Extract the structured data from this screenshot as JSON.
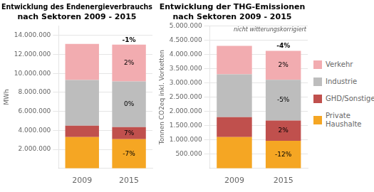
{
  "chart_data": [
    {
      "type": "bar",
      "stacked": true,
      "grid": true,
      "title": "Entwicklung des Endenergieverbrauchs\nnach Sektoren 2009 - 2015",
      "y_label": "MWh",
      "categories": [
        "2009",
        "2015"
      ],
      "series": [
        {
          "name": "Private Haushalte",
          "color": "#F5A623",
          "values": [
            3300000,
            3070000
          ]
        },
        {
          "name": "GHD/Sonstiges",
          "color": "#C0504D",
          "values": [
            1200000,
            1284000
          ]
        },
        {
          "name": "Industrie",
          "color": "#BDBDBD",
          "values": [
            4800000,
            4800000
          ]
        },
        {
          "name": "Verkehr",
          "color": "#F2ACB0",
          "values": [
            3800000,
            3876000
          ]
        }
      ],
      "ylim": [
        0,
        15000000
      ],
      "yticks": [
        {
          "value": 2000000,
          "label": "2.000.000"
        },
        {
          "value": 4000000,
          "label": "4.000.000"
        },
        {
          "value": 6000000,
          "label": "6.000.000"
        },
        {
          "value": 8000000,
          "label": "8.000.000"
        },
        {
          "value": 10000000,
          "label": "10.000.000"
        },
        {
          "value": 12000000,
          "label": "12.000.000"
        },
        {
          "value": 14000000,
          "label": "14.000.000"
        }
      ],
      "annotations": [
        {
          "x": "2015",
          "series": "Private Haushalte",
          "text": "-7%"
        },
        {
          "x": "2015",
          "series": "GHD/Sonstiges",
          "text": "7%"
        },
        {
          "x": "2015",
          "series": "Industrie",
          "text": "0%"
        },
        {
          "x": "2015",
          "series": "Verkehr",
          "text": "2%"
        },
        {
          "x": "2015",
          "text": "-1%"
        }
      ]
    },
    {
      "type": "bar",
      "stacked": true,
      "grid": true,
      "legend": "right",
      "title": "Entwicklung der THG-Emissionen\nnach Sektoren 2009 - 2015",
      "y_label": "Tonnen CO2eq inkl. Vorketten",
      "categories": [
        "2009",
        "2015"
      ],
      "series": [
        {
          "name": "Private Haushalte",
          "color": "#F5A623",
          "values": [
            1100000,
            968000
          ]
        },
        {
          "name": "GHD/Sonstiges",
          "color": "#C0504D",
          "values": [
            700000,
            714000
          ]
        },
        {
          "name": "Industrie",
          "color": "#BDBDBD",
          "values": [
            1500000,
            1425000
          ]
        },
        {
          "name": "Verkehr",
          "color": "#F2ACB0",
          "values": [
            1000000,
            1020000
          ]
        }
      ],
      "ylim": [
        0,
        5000000
      ],
      "yticks": [
        {
          "value": 500000,
          "label": "500.000"
        },
        {
          "value": 1000000,
          "label": "1.000.000"
        },
        {
          "value": 1500000,
          "label": "1.500.000"
        },
        {
          "value": 2000000,
          "label": "2.000.000"
        },
        {
          "value": 2500000,
          "label": "2.500.000"
        },
        {
          "value": 3000000,
          "label": "3.000.000"
        },
        {
          "value": 3500000,
          "label": "3.500.000"
        },
        {
          "value": 4000000,
          "label": "4.000.000"
        },
        {
          "value": 4500000,
          "label": "4.500.000"
        },
        {
          "value": 5000000,
          "label": "5.000.000"
        }
      ],
      "annotations": [
        {
          "x": "2015",
          "series": "Private Haushalte",
          "text": "-12%"
        },
        {
          "x": "2015",
          "series": "GHD/Sonstiges",
          "text": "2%"
        },
        {
          "x": "2015",
          "series": "Industrie",
          "text": "-5%"
        },
        {
          "x": "2015",
          "series": "Verkehr",
          "text": "2%"
        },
        {
          "x": "2015",
          "text": "-4%"
        },
        {
          "text": "nicht witterungskorrigiert"
        }
      ]
    }
  ]
}
